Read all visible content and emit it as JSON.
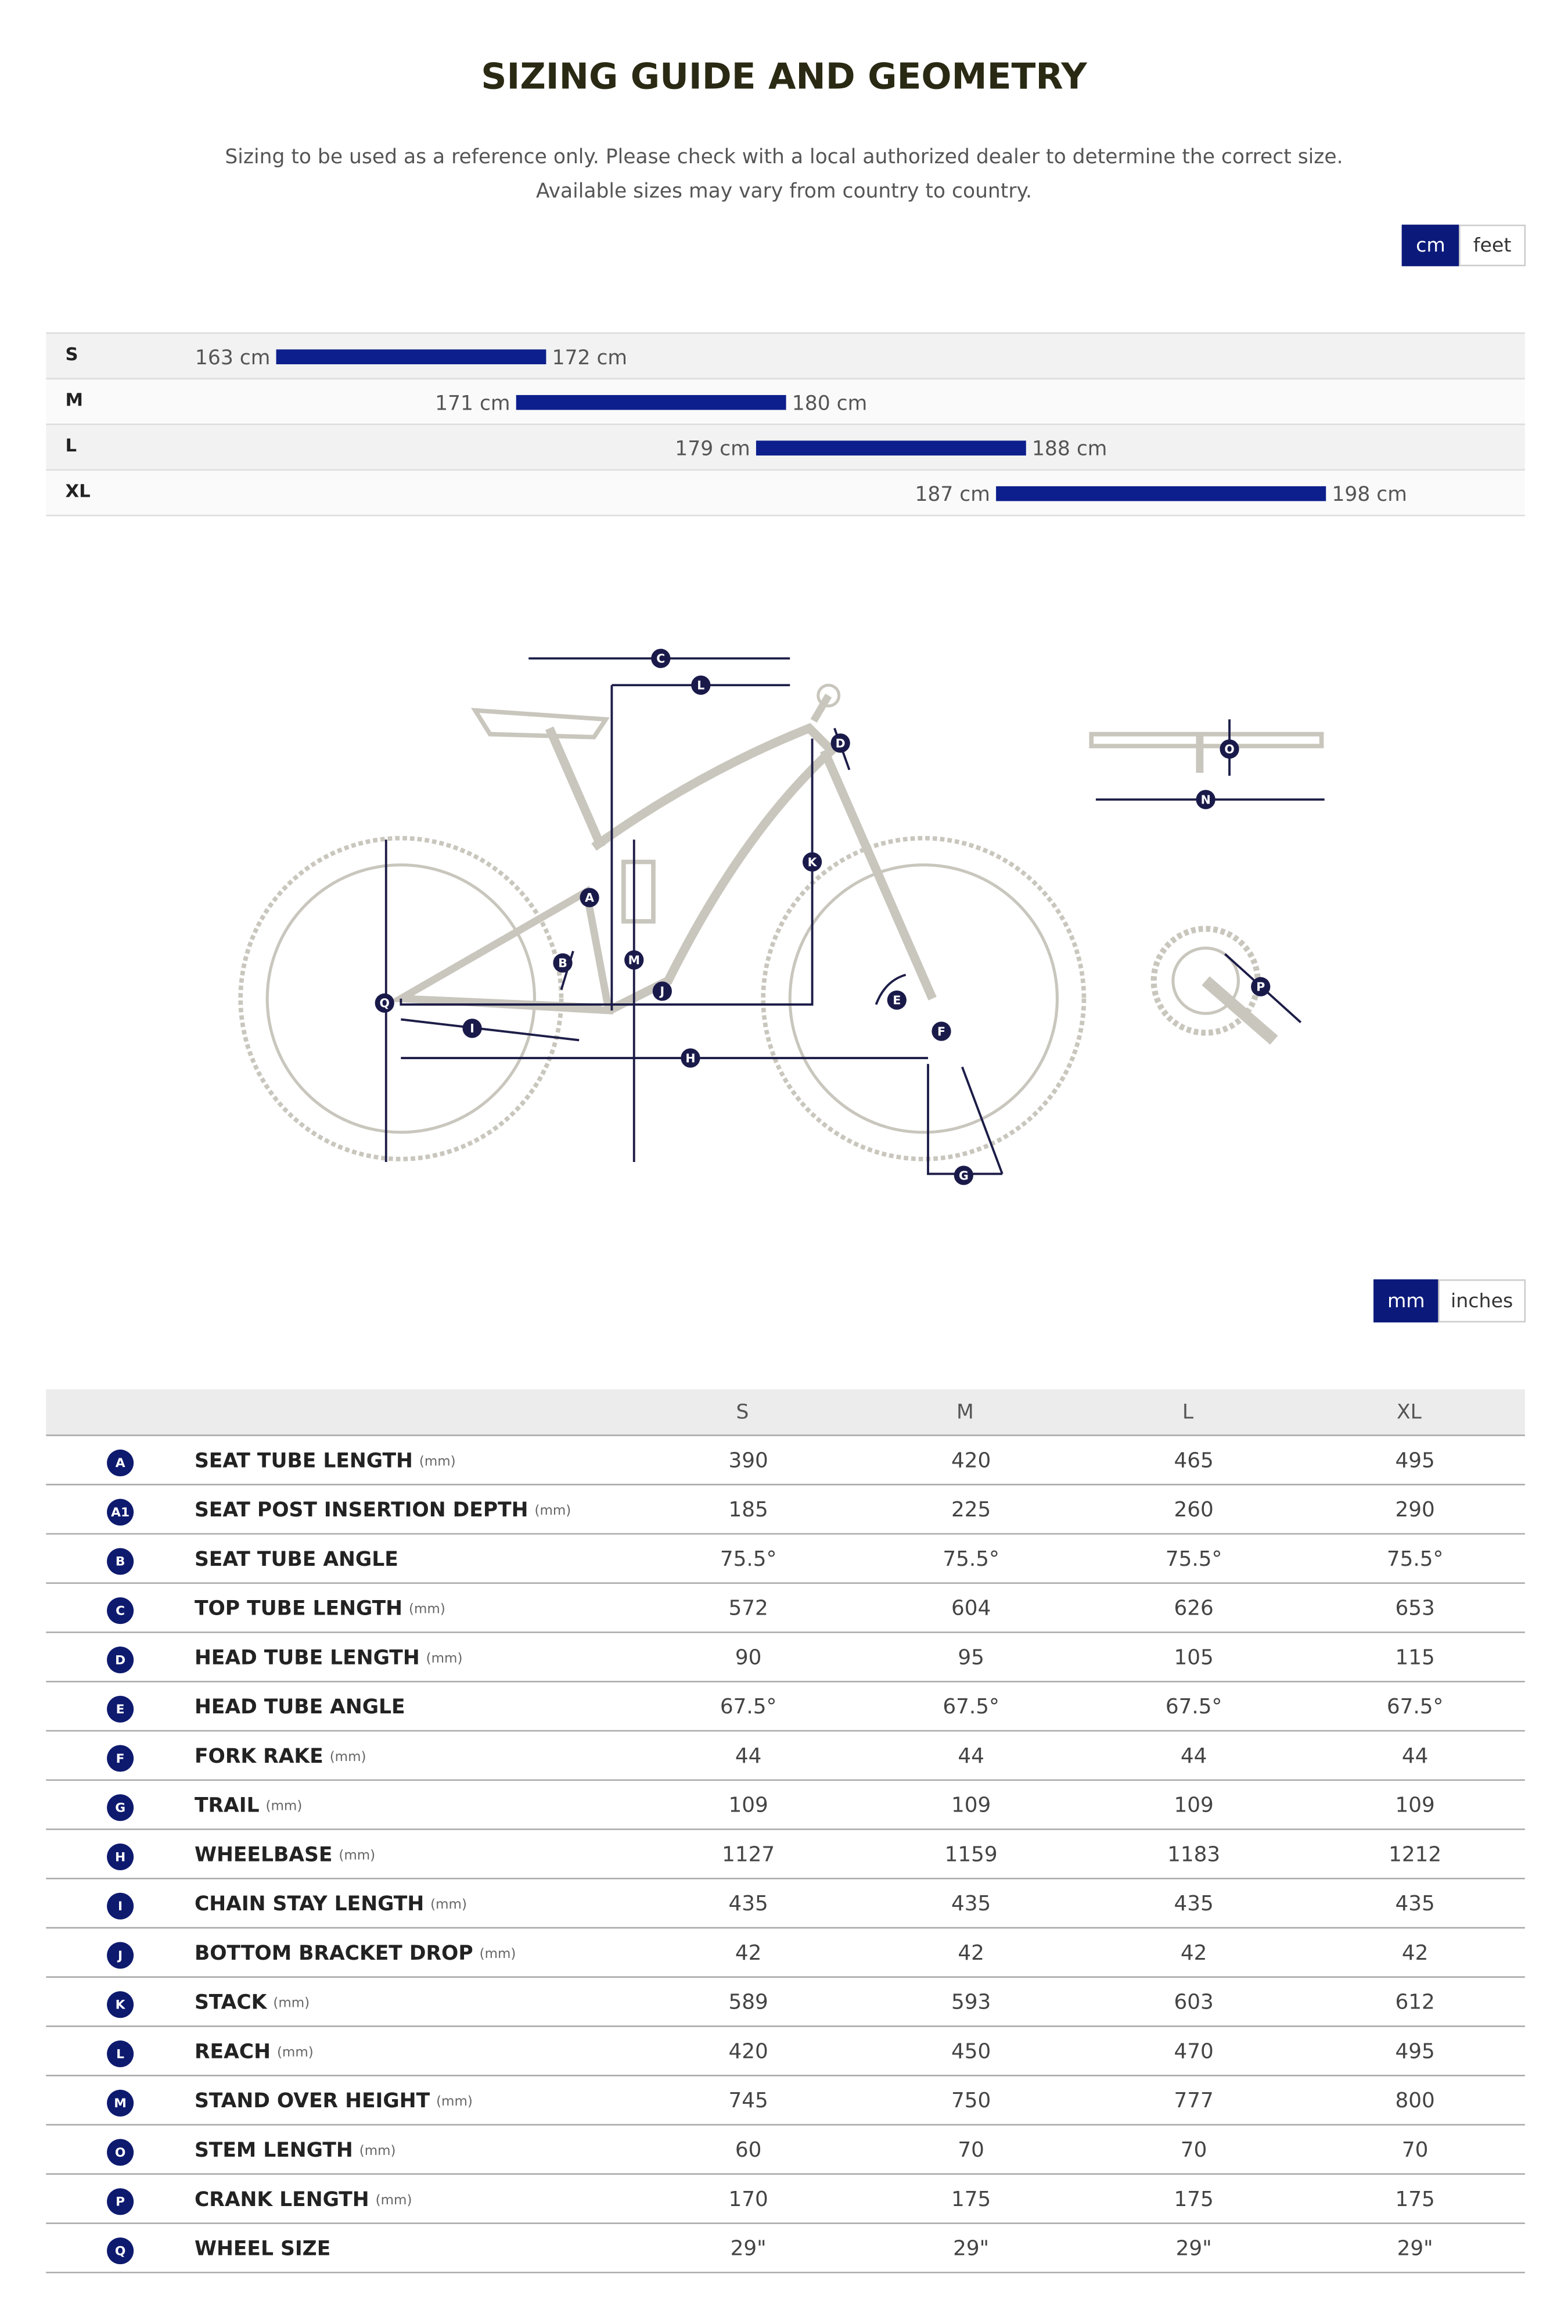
{
  "header": {
    "title": "SIZING GUIDE AND GEOMETRY",
    "subtitle": [
      "Sizing to be used as a reference only. Please check with a local authorized dealer to determine the correct size.",
      "Available sizes may vary from country to country."
    ]
  },
  "height_units": [
    "cm",
    "feet"
  ],
  "sizing": {
    "unit": "cm",
    "rows": [
      {
        "size": "S",
        "min": 163,
        "max": 172
      },
      {
        "size": "M",
        "min": 171,
        "max": 180
      },
      {
        "size": "L",
        "min": 179,
        "max": 188
      },
      {
        "size": "XL",
        "min": 187,
        "max": 198
      }
    ]
  },
  "diagram": {
    "markers": [
      "C",
      "L",
      "D",
      "K",
      "A",
      "O",
      "N",
      "B",
      "M",
      "J",
      "E",
      "Q",
      "I",
      "H",
      "F",
      "P",
      "G"
    ]
  },
  "geometry_units": [
    "mm",
    "inches"
  ],
  "table": {
    "columns": [
      "S",
      "M",
      "L",
      "XL"
    ],
    "rows": [
      {
        "badge": "A",
        "label": "SEAT TUBE LENGTH",
        "unit": "(mm)",
        "values": [
          390,
          420,
          465,
          495
        ]
      },
      {
        "badge": "A1",
        "label": "SEAT POST INSERTION DEPTH",
        "unit": "(mm)",
        "values": [
          185,
          225,
          260,
          290
        ]
      },
      {
        "badge": "B",
        "label": "SEAT TUBE ANGLE",
        "values": [
          "75.5°",
          "75.5°",
          "75.5°",
          "75.5°"
        ]
      },
      {
        "badge": "C",
        "label": "TOP TUBE LENGTH",
        "unit": "(mm)",
        "values": [
          572,
          604,
          626,
          653
        ]
      },
      {
        "badge": "D",
        "label": "HEAD TUBE LENGTH",
        "unit": "(mm)",
        "values": [
          90,
          95,
          105,
          115
        ]
      },
      {
        "badge": "E",
        "label": "HEAD TUBE ANGLE",
        "values": [
          "67.5°",
          "67.5°",
          "67.5°",
          "67.5°"
        ]
      },
      {
        "badge": "F",
        "label": "FORK RAKE",
        "unit": "(mm)",
        "values": [
          44,
          44,
          44,
          44
        ]
      },
      {
        "badge": "G",
        "label": "TRAIL",
        "unit": "(mm)",
        "values": [
          109,
          109,
          109,
          109
        ]
      },
      {
        "badge": "H",
        "label": "WHEELBASE",
        "unit": "(mm)",
        "values": [
          1127,
          1159,
          1183,
          1212
        ]
      },
      {
        "badge": "I",
        "label": "CHAIN STAY LENGTH",
        "unit": "(mm)",
        "values": [
          435,
          435,
          435,
          435
        ]
      },
      {
        "badge": "J",
        "label": "BOTTOM BRACKET DROP",
        "unit": "(mm)",
        "values": [
          42,
          42,
          42,
          42
        ]
      },
      {
        "badge": "K",
        "label": "STACK",
        "unit": "(mm)",
        "values": [
          589,
          593,
          603,
          612
        ]
      },
      {
        "badge": "L",
        "label": "REACH",
        "unit": "(mm)",
        "values": [
          420,
          450,
          470,
          495
        ]
      },
      {
        "badge": "M",
        "label": "STAND OVER HEIGHT",
        "unit": "(mm)",
        "values": [
          745,
          750,
          777,
          800
        ]
      },
      {
        "badge": "O",
        "label": "STEM LENGTH",
        "unit": "(mm)",
        "values": [
          60,
          70,
          70,
          70
        ]
      },
      {
        "badge": "P",
        "label": "CRANK LENGTH",
        "unit": "(mm)",
        "values": [
          170,
          175,
          175,
          175
        ]
      },
      {
        "badge": "Q",
        "label": "WHEEL SIZE",
        "values": [
          "29\"",
          "29\"",
          "29\"",
          "29\""
        ]
      }
    ]
  }
}
